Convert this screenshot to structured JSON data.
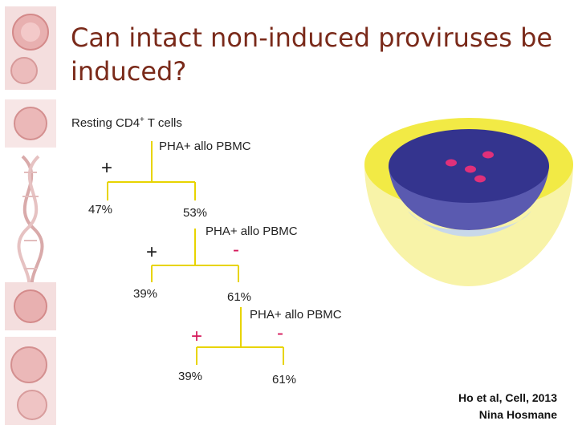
{
  "slide": {
    "title": "Can intact non-induced proviruses be induced?",
    "cell_label": "Resting CD4",
    "cell_superscript": "+",
    "cell_suffix": " T cells",
    "stim_label": "PHA+ allo PBMC",
    "plus_sign": "+",
    "minus_sign": "-",
    "level1": {
      "plus_pct": "47%",
      "minus_pct": "53%"
    },
    "level2": {
      "plus_pct": "39%",
      "minus_pct": "61%"
    },
    "level3": {
      "plus_pct": "39%",
      "minus_pct": "61%"
    },
    "citation_line1": "Ho et al, Cell, 2013",
    "citation_line2": "Nina Hosmane",
    "colors": {
      "title": "#7a2a1a",
      "tree_line": "#e8d400",
      "dish_yellow": "#f5ef55",
      "dish_blue": "#3a3a9a",
      "cell_pink": "#e0307a",
      "minus_pink": "#d5185a"
    }
  }
}
